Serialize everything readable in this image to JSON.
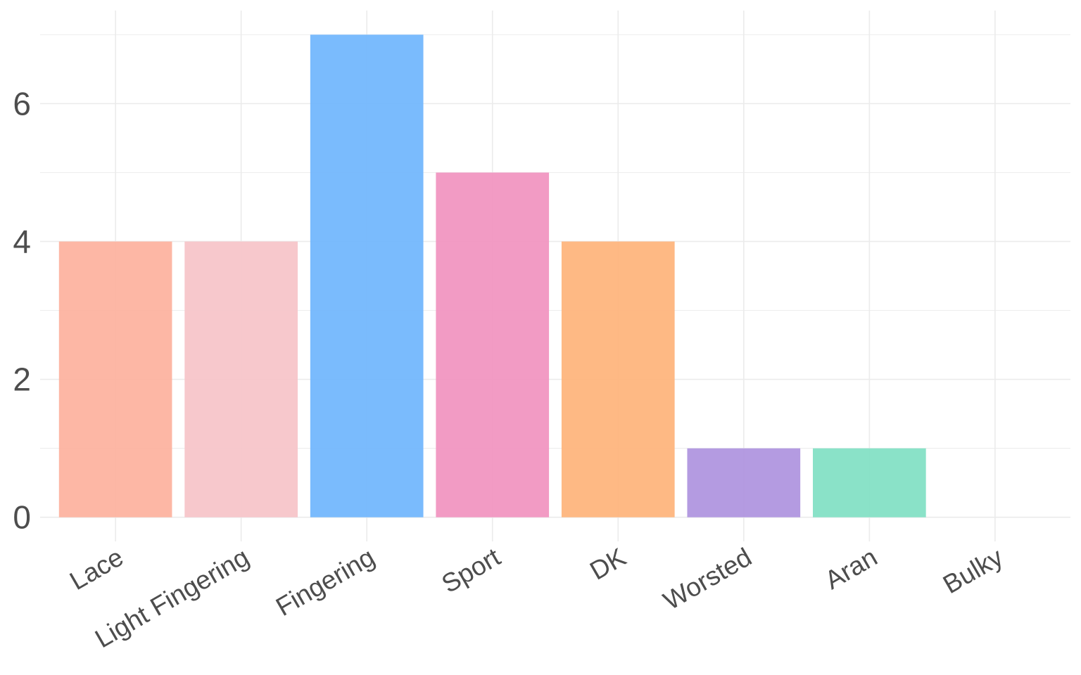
{
  "chart_data": {
    "type": "bar",
    "categories": [
      "Lace",
      "Light Fingering",
      "Fingering",
      "Sport",
      "DK",
      "Worsted",
      "Aran",
      "Bulky"
    ],
    "values": [
      4,
      4,
      7,
      5,
      4,
      1,
      1,
      0
    ],
    "colors": [
      "#fdb3a0",
      "#f7c5c9",
      "#73b7fd",
      "#f196c1",
      "#feb57d",
      "#b096df",
      "#84e0c5",
      "#c9c9c9"
    ],
    "ylim": [
      -0.35,
      7.35
    ],
    "yticks": [
      0,
      2,
      4,
      6
    ],
    "minor_yticks": [
      1,
      3,
      5,
      7
    ],
    "grid": true
  }
}
